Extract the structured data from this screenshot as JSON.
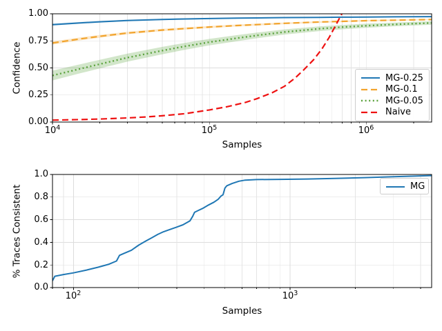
{
  "figure": {
    "bg": "#ffffff",
    "grid_color": "#dcdcdc",
    "spine_color": "#000000",
    "accent_blue": "#1f77b4",
    "accent_orange": "#f2a42d",
    "accent_green": "#5aa23c",
    "accent_red": "#ee1111"
  },
  "chart_data": [
    {
      "type": "line",
      "xscale": "log",
      "xlabel": "Samples",
      "ylabel": "Confidence",
      "xlim": [
        10000,
        2600000
      ],
      "ylim": [
        0,
        1
      ],
      "yticks": [
        0,
        0.25,
        0.5,
        0.75,
        1.0
      ],
      "ytick_labels": [
        "0.00",
        "0.25",
        "0.50",
        "0.75",
        "1.00"
      ],
      "xtick_values": [
        10000,
        100000,
        1000000
      ],
      "xticks": [
        {
          "base": "10",
          "exp": "4"
        },
        {
          "base": "10",
          "exp": "5"
        },
        {
          "base": "10",
          "exp": "6"
        }
      ],
      "grid": "both",
      "legend_position": "lower right",
      "px": {
        "l": 76,
        "t": 20,
        "r": 625,
        "b": 177
      },
      "series": [
        {
          "name": "MG-0.25",
          "color": "#1f77b4",
          "style": "solid",
          "dash": "none",
          "lw": 2,
          "band_opacity": 0.25,
          "points": [
            [
              10000,
              0.9
            ],
            [
              15000,
              0.916
            ],
            [
              20000,
              0.926
            ],
            [
              30000,
              0.938
            ],
            [
              50000,
              0.948
            ],
            [
              70000,
              0.952
            ],
            [
              100000,
              0.956
            ],
            [
              150000,
              0.96
            ],
            [
              200000,
              0.962
            ],
            [
              300000,
              0.965
            ],
            [
              500000,
              0.967
            ],
            [
              700000,
              0.969
            ],
            [
              1000000,
              0.97
            ],
            [
              1500000,
              0.972
            ],
            [
              2600000,
              0.974
            ]
          ],
          "band": [
            0.009,
            0.008,
            0.008,
            0.007,
            0.006,
            0.006,
            0.005,
            0.005,
            0.005,
            0.004,
            0.004,
            0.004,
            0.004,
            0.003,
            0.003
          ]
        },
        {
          "name": "MG-0.1",
          "color": "#f2a42d",
          "style": "dashed",
          "dash": "9 5",
          "lw": 2.2,
          "band_opacity": 0.25,
          "points": [
            [
              10000,
              0.73
            ],
            [
              15000,
              0.768
            ],
            [
              20000,
              0.792
            ],
            [
              30000,
              0.822
            ],
            [
              50000,
              0.85
            ],
            [
              70000,
              0.864
            ],
            [
              100000,
              0.878
            ],
            [
              150000,
              0.892
            ],
            [
              200000,
              0.9
            ],
            [
              300000,
              0.912
            ],
            [
              500000,
              0.924
            ],
            [
              700000,
              0.93
            ],
            [
              1000000,
              0.936
            ],
            [
              1500000,
              0.941
            ],
            [
              2600000,
              0.947
            ]
          ],
          "band": [
            0.015,
            0.014,
            0.013,
            0.012,
            0.011,
            0.01,
            0.01,
            0.009,
            0.009,
            0.008,
            0.008,
            0.007,
            0.007,
            0.006,
            0.006
          ]
        },
        {
          "name": "MG-0.05",
          "color": "#5aa23c",
          "style": "dotted",
          "dash": "2 3.6",
          "lw": 2.4,
          "band_opacity": 0.27,
          "points": [
            [
              10000,
              0.43
            ],
            [
              15000,
              0.492
            ],
            [
              20000,
              0.535
            ],
            [
              30000,
              0.595
            ],
            [
              50000,
              0.66
            ],
            [
              70000,
              0.7
            ],
            [
              100000,
              0.738
            ],
            [
              150000,
              0.775
            ],
            [
              200000,
              0.8
            ],
            [
              300000,
              0.832
            ],
            [
              500000,
              0.862
            ],
            [
              700000,
              0.877
            ],
            [
              1000000,
              0.89
            ],
            [
              1500000,
              0.902
            ],
            [
              2600000,
              0.915
            ]
          ],
          "band": [
            0.045,
            0.042,
            0.04,
            0.037,
            0.034,
            0.032,
            0.03,
            0.028,
            0.026,
            0.024,
            0.022,
            0.02,
            0.019,
            0.017,
            0.016
          ]
        },
        {
          "name": "Naive",
          "color": "#ee1111",
          "style": "dashed",
          "dash": "9 5",
          "lw": 2.2,
          "points": [
            [
              10000,
              0.018
            ],
            [
              15000,
              0.023
            ],
            [
              20000,
              0.028
            ],
            [
              30000,
              0.038
            ],
            [
              40000,
              0.048
            ],
            [
              50000,
              0.058
            ],
            [
              70000,
              0.078
            ],
            [
              100000,
              0.112
            ],
            [
              130000,
              0.142
            ],
            [
              170000,
              0.182
            ],
            [
              200000,
              0.215
            ],
            [
              250000,
              0.27
            ],
            [
              300000,
              0.33
            ],
            [
              350000,
              0.405
            ],
            [
              400000,
              0.485
            ],
            [
              460000,
              0.575
            ],
            [
              520000,
              0.675
            ],
            [
              580000,
              0.785
            ],
            [
              640000,
              0.9
            ],
            [
              700000,
              1.005
            ],
            [
              730000,
              1.06
            ]
          ]
        }
      ]
    },
    {
      "type": "line",
      "xscale": "log",
      "xlabel": "Samples",
      "ylabel": "% Traces Consistent",
      "xlim": [
        80,
        4500
      ],
      "ylim": [
        0,
        1
      ],
      "yticks": [
        0,
        0.2,
        0.4,
        0.6,
        0.8,
        1.0
      ],
      "ytick_labels": [
        "0.0",
        "0.2",
        "0.4",
        "0.6",
        "0.8",
        "1.0"
      ],
      "xtick_values": [
        100,
        1000
      ],
      "xticks": [
        {
          "base": "10",
          "exp": "2"
        },
        {
          "base": "10",
          "exp": "3"
        }
      ],
      "grid": "both",
      "legend_position": "upper right",
      "px": {
        "l": 76,
        "t": 253,
        "r": 625,
        "b": 417
      },
      "series": [
        {
          "name": "MG",
          "color": "#1f77b4",
          "style": "solid",
          "dash": "none",
          "lw": 2,
          "points": [
            [
              80,
              0.06
            ],
            [
              82,
              0.1
            ],
            [
              90,
              0.115
            ],
            [
              100,
              0.13
            ],
            [
              115,
              0.155
            ],
            [
              130,
              0.18
            ],
            [
              145,
              0.205
            ],
            [
              158,
              0.235
            ],
            [
              163,
              0.285
            ],
            [
              170,
              0.3
            ],
            [
              185,
              0.33
            ],
            [
              200,
              0.375
            ],
            [
              215,
              0.41
            ],
            [
              230,
              0.44
            ],
            [
              245,
              0.47
            ],
            [
              258,
              0.49
            ],
            [
              275,
              0.51
            ],
            [
              295,
              0.53
            ],
            [
              320,
              0.555
            ],
            [
              345,
              0.59
            ],
            [
              355,
              0.63
            ],
            [
              362,
              0.665
            ],
            [
              375,
              0.68
            ],
            [
              395,
              0.7
            ],
            [
              420,
              0.73
            ],
            [
              445,
              0.755
            ],
            [
              465,
              0.78
            ],
            [
              480,
              0.81
            ],
            [
              490,
              0.82
            ],
            [
              500,
              0.88
            ],
            [
              510,
              0.9
            ],
            [
              540,
              0.92
            ],
            [
              580,
              0.94
            ],
            [
              620,
              0.95
            ],
            [
              700,
              0.955
            ],
            [
              900,
              0.957
            ],
            [
              1200,
              0.96
            ],
            [
              1600,
              0.965
            ],
            [
              2200,
              0.972
            ],
            [
              3000,
              0.98
            ],
            [
              4500,
              0.99
            ]
          ]
        }
      ]
    }
  ]
}
